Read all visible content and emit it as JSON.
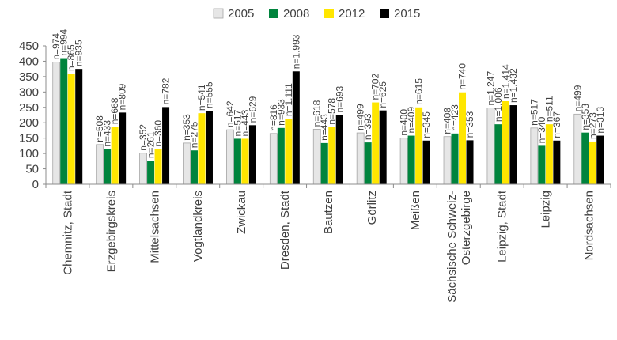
{
  "chart_data": {
    "type": "bar",
    "title": "",
    "xlabel": "",
    "ylabel": "",
    "ylim": [
      0,
      450
    ],
    "yticks": [
      0,
      50,
      100,
      150,
      200,
      250,
      300,
      350,
      400,
      450
    ],
    "grid": false,
    "legend": "top-center",
    "categories": [
      "Chemnitz, Stadt",
      "Erzgebirgskreis",
      "Mittelsachsen",
      "Vogtlandkreis",
      "Zwickau",
      "Dresden, Stadt",
      "Bautzen",
      "Görlitz",
      "Meißen",
      "Sächsische Schweiz-Osterzgebirge",
      "Leipzig, Stadt",
      "Leipzig",
      "Nordsachsen"
    ],
    "category_lines": [
      [
        "Chemnitz, Stadt"
      ],
      [
        "Erzgebirgskreis"
      ],
      [
        "Mittelsachsen"
      ],
      [
        "Vogtlandkreis"
      ],
      [
        "Zwickau"
      ],
      [
        "Dresden, Stadt"
      ],
      [
        "Bautzen"
      ],
      [
        "Görlitz"
      ],
      [
        "Meißen"
      ],
      [
        "Sächsische Schweiz-",
        "Osterzgebirge"
      ],
      [
        "Leipzig, Stadt"
      ],
      [
        "Leipzig"
      ],
      [
        "Nordsachsen"
      ]
    ],
    "series": [
      {
        "name": "2005",
        "color": "#e6e6e6",
        "values": [
          397,
          129,
          101,
          134,
          177,
          165,
          179,
          167,
          150,
          155,
          248,
          183,
          228
        ],
        "labels": [
          "n=974",
          "n=508",
          "n=352",
          "n=353",
          "n=642",
          "n=816",
          "n=618",
          "n=499",
          "n=400",
          "n=408",
          "n=1.247",
          "n=517",
          "n=499"
        ]
      },
      {
        "name": "2008",
        "color": "#00843d",
        "values": [
          410,
          114,
          77,
          110,
          148,
          183,
          134,
          136,
          158,
          165,
          195,
          125,
          168
        ],
        "labels": [
          "n=994",
          "n=433",
          "n=261",
          "n=275",
          "n=517",
          "n=933",
          "n=443",
          "n=393",
          "n=409",
          "n=423",
          "n=1.006",
          "n=340",
          "n=353"
        ]
      },
      {
        "name": "2012",
        "color": "#ffe600",
        "values": [
          360,
          187,
          114,
          231,
          148,
          213,
          186,
          266,
          250,
          299,
          270,
          195,
          139
        ],
        "labels": [
          "n=865",
          "n=668",
          "n=360",
          "n=541",
          "n=443",
          "n=1.111",
          "n=578",
          "n=702",
          "n=615",
          "n=740",
          "n=1.414",
          "n=511",
          "n=273"
        ]
      },
      {
        "name": "2015",
        "color": "#000000",
        "values": [
          375,
          233,
          251,
          239,
          192,
          367,
          225,
          240,
          142,
          143,
          257,
          142,
          158
        ],
        "labels": [
          "n=935",
          "n=809",
          "n=782",
          "n=555",
          "n=629",
          "n=1.993",
          "n=693",
          "n=625",
          "n=345",
          "n=353",
          "n=1.432",
          "n=367",
          "n=313"
        ]
      }
    ]
  }
}
